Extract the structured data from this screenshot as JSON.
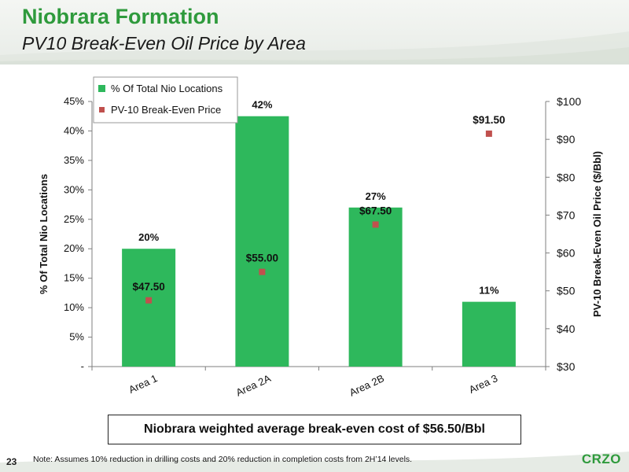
{
  "header": {
    "title": "Niobrara Formation",
    "subtitle": "PV10 Break-Even Oil Price by Area"
  },
  "chart_data": {
    "type": "bar",
    "categories": [
      "Area 1",
      "Area 2A",
      "Area 2B",
      "Area 3"
    ],
    "series": [
      {
        "name": "% Of Total Nio Locations",
        "type": "bar",
        "axis": "left",
        "values": [
          20,
          42.5,
          27,
          11
        ],
        "labels": [
          "20%",
          "42%",
          "27%",
          "11%"
        ]
      },
      {
        "name": "PV-10 Break-Even Price",
        "type": "scatter",
        "axis": "right",
        "values": [
          47.5,
          55.0,
          67.5,
          91.5
        ],
        "labels": [
          "$47.50",
          "$55.00",
          "$67.50",
          "$91.50"
        ]
      }
    ],
    "ylabel": "% Of Total Nio Locations",
    "y2label": "PV-10 Break-Even Oil Price ($/Bbl)",
    "ylim": [
      0,
      45
    ],
    "y2lim": [
      30,
      100
    ],
    "yticks": [
      "-",
      "5%",
      "10%",
      "15%",
      "20%",
      "25%",
      "30%",
      "35%",
      "40%",
      "45%"
    ],
    "y2ticks": [
      "$30",
      "$40",
      "$50",
      "$60",
      "$70",
      "$80",
      "$90",
      "$100"
    ],
    "legend_position": "top-left",
    "grid": false,
    "colors": {
      "bar": "#2eb85c",
      "marker": "#c0504d",
      "title": "#2e9a3c"
    }
  },
  "callout": "Niobrara weighted average break-even cost of $56.50/Bbl",
  "footer": {
    "page_number": "23",
    "note": "Note:  Assumes 10% reduction in drilling costs and 20% reduction in completion costs from 2H’14 levels.",
    "logo_text": "CRZO"
  }
}
